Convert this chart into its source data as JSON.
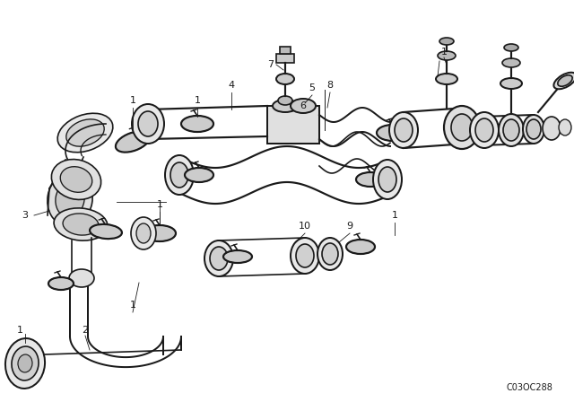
{
  "background_color": "#ffffff",
  "line_color": "#1a1a1a",
  "part_number": "C03OC288",
  "figsize": [
    6.4,
    4.48
  ],
  "dpi": 100,
  "lw": 1.2
}
